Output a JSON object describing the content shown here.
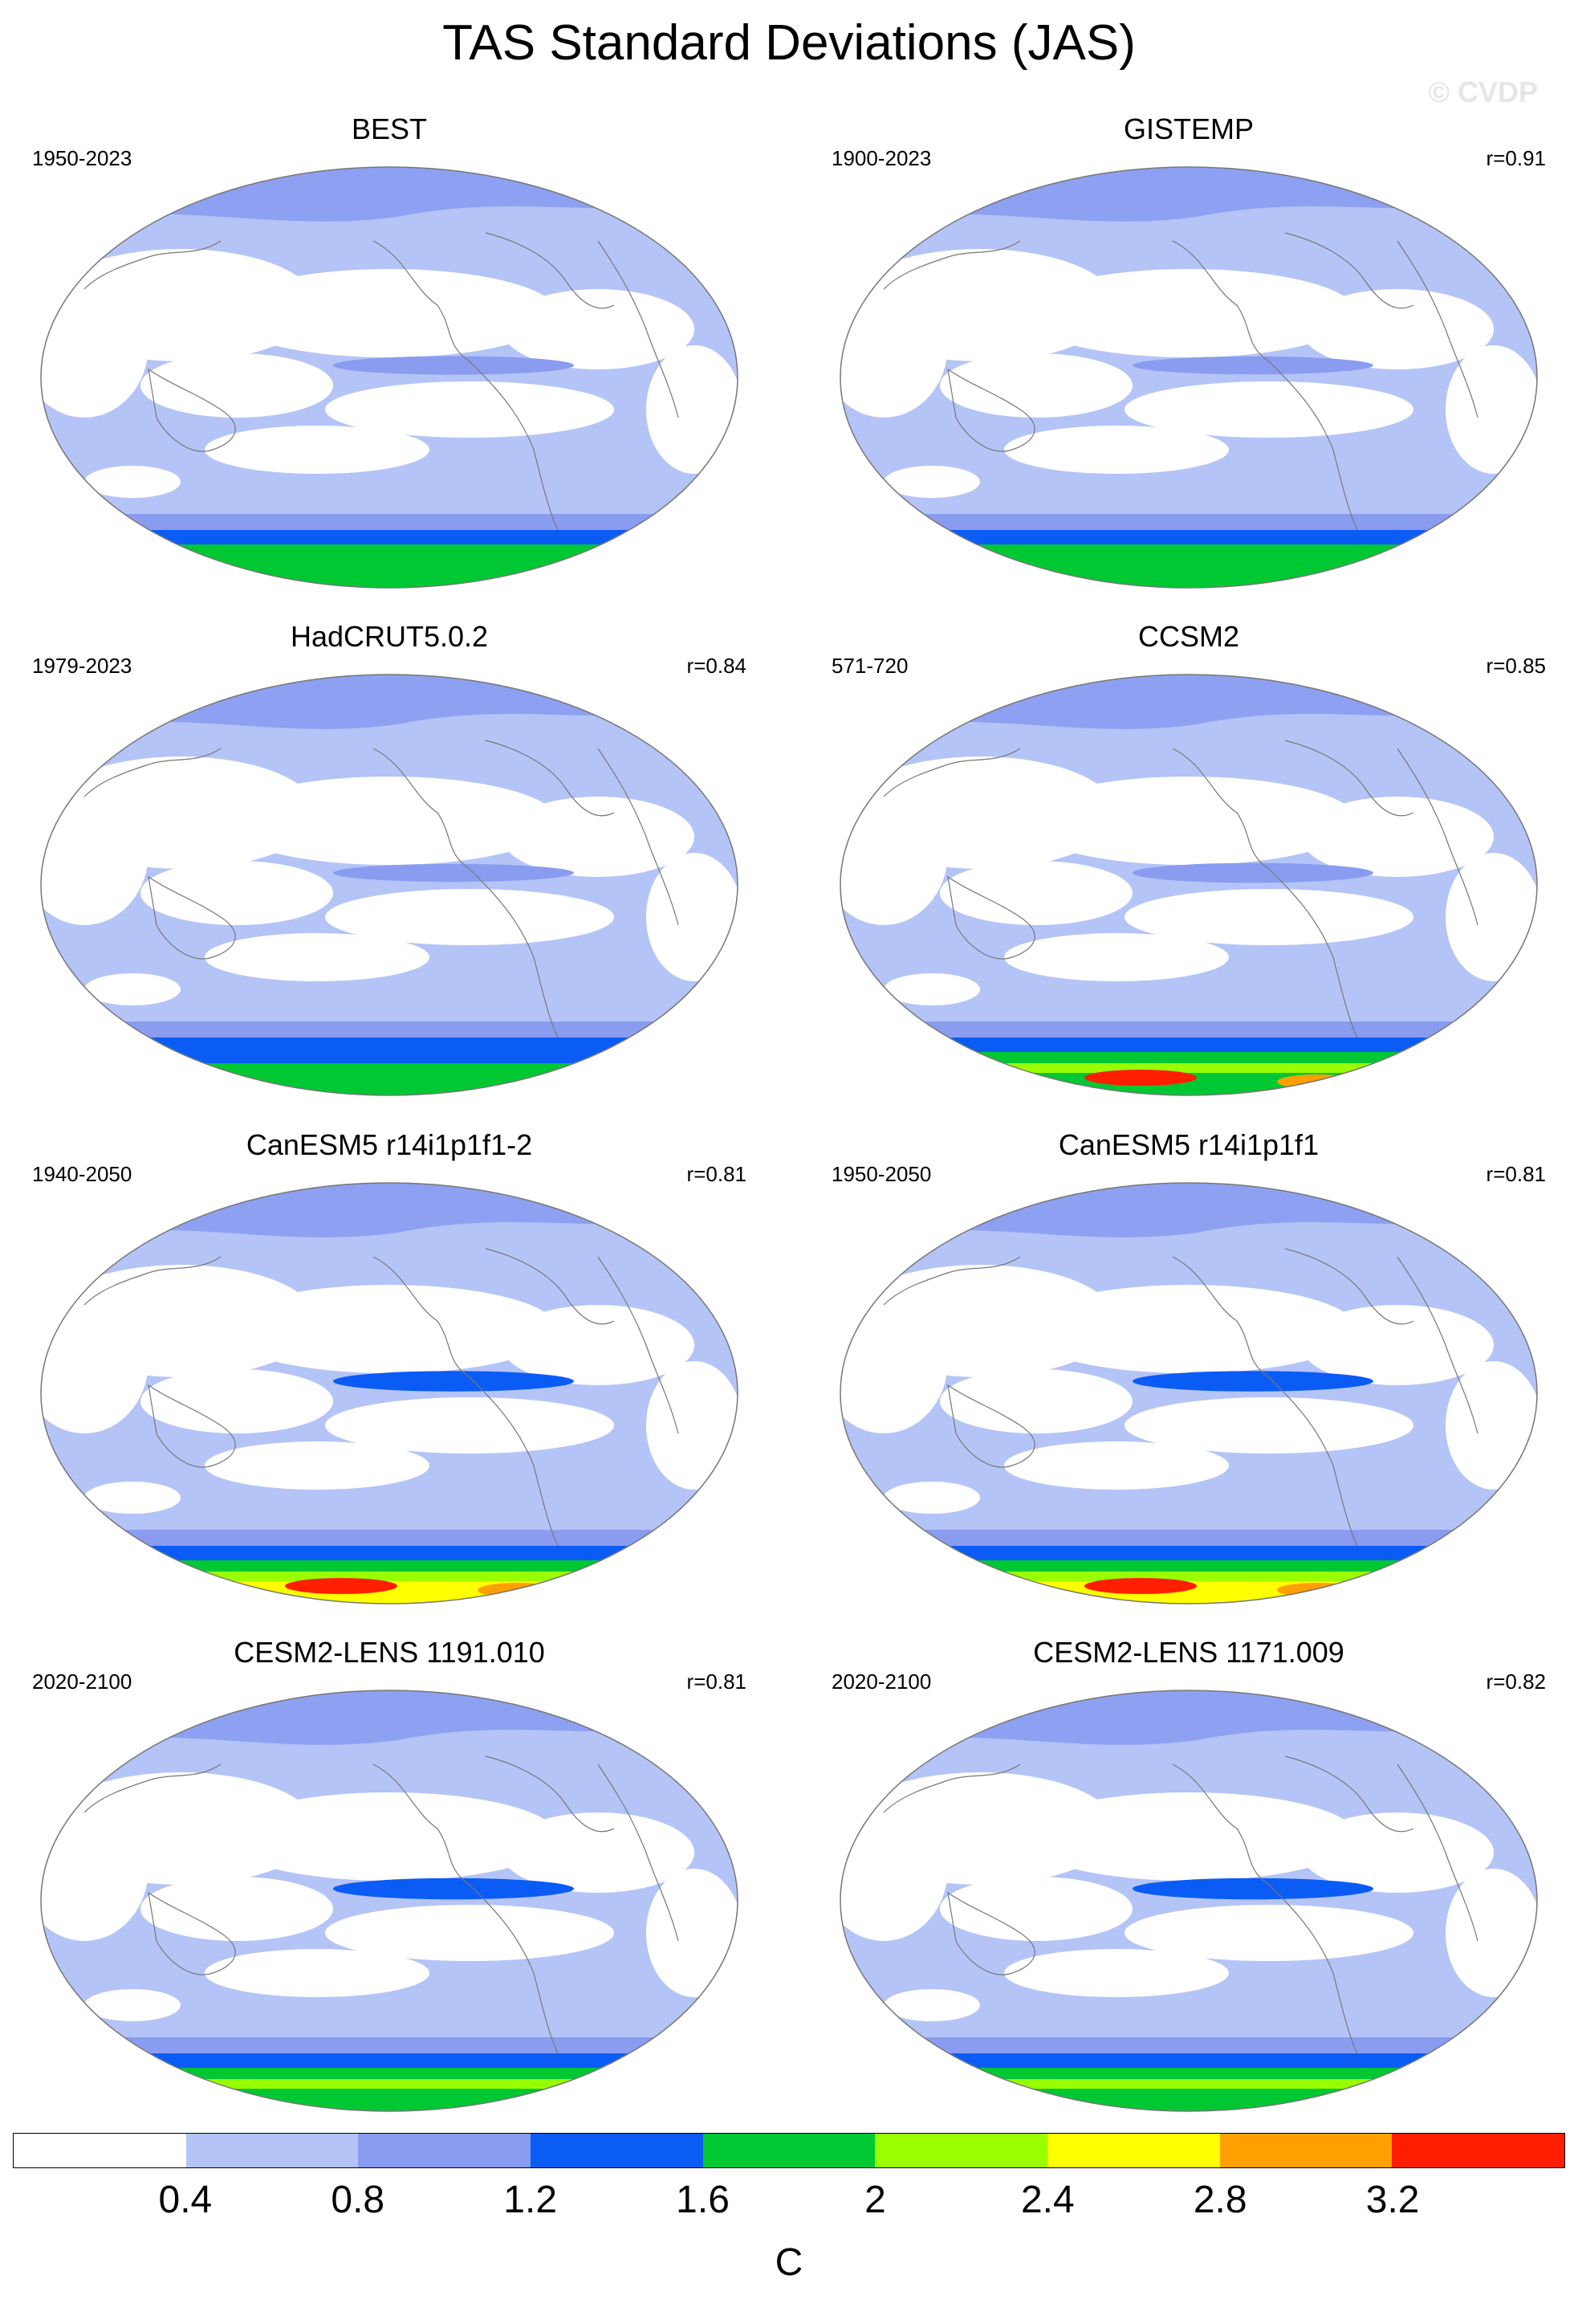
{
  "figure": {
    "title": "TAS Standard Deviations (JAS)",
    "watermark": "© CVDP"
  },
  "panels": [
    {
      "title": "BEST",
      "years": "1950-2023",
      "corr": "",
      "polar_intensity": 0.55,
      "tropical_intensity": 0.2
    },
    {
      "title": "GISTEMP",
      "years": "1900-2023",
      "corr": "r=0.91",
      "polar_intensity": 0.5,
      "tropical_intensity": 0.15
    },
    {
      "title": "HadCRUT5.0.2",
      "years": "1979-2023",
      "corr": "r=0.84",
      "polar_intensity": 0.35,
      "tropical_intensity": 0.15
    },
    {
      "title": "CCSM2",
      "years": "571-720",
      "corr": "r=0.85",
      "polar_intensity": 0.75,
      "tropical_intensity": 0.3
    },
    {
      "title": "CanESM5 r14i1p1f1-2",
      "years": "1940-2050",
      "corr": "r=0.81",
      "polar_intensity": 0.95,
      "tropical_intensity": 0.35
    },
    {
      "title": "CanESM5 r14i1p1f1",
      "years": "1950-2050",
      "corr": "r=0.81",
      "polar_intensity": 0.95,
      "tropical_intensity": 0.35
    },
    {
      "title": "CESM2-LENS 1191.010",
      "years": "2020-2100",
      "corr": "r=0.81",
      "polar_intensity": 0.7,
      "tropical_intensity": 0.4
    },
    {
      "title": "CESM2-LENS 1171.009",
      "years": "2020-2100",
      "corr": "r=0.82",
      "polar_intensity": 0.7,
      "tropical_intensity": 0.4
    }
  ],
  "colorbar": {
    "colors": [
      "#ffffff",
      "#b4c4f7",
      "#8a9cf0",
      "#0a5cf5",
      "#00c832",
      "#99ff00",
      "#ffff00",
      "#ffa000",
      "#ff1e00"
    ],
    "ticks": [
      "0.4",
      "0.8",
      "1.2",
      "1.6",
      "2",
      "2.4",
      "2.8",
      "3.2"
    ],
    "units": "C"
  }
}
